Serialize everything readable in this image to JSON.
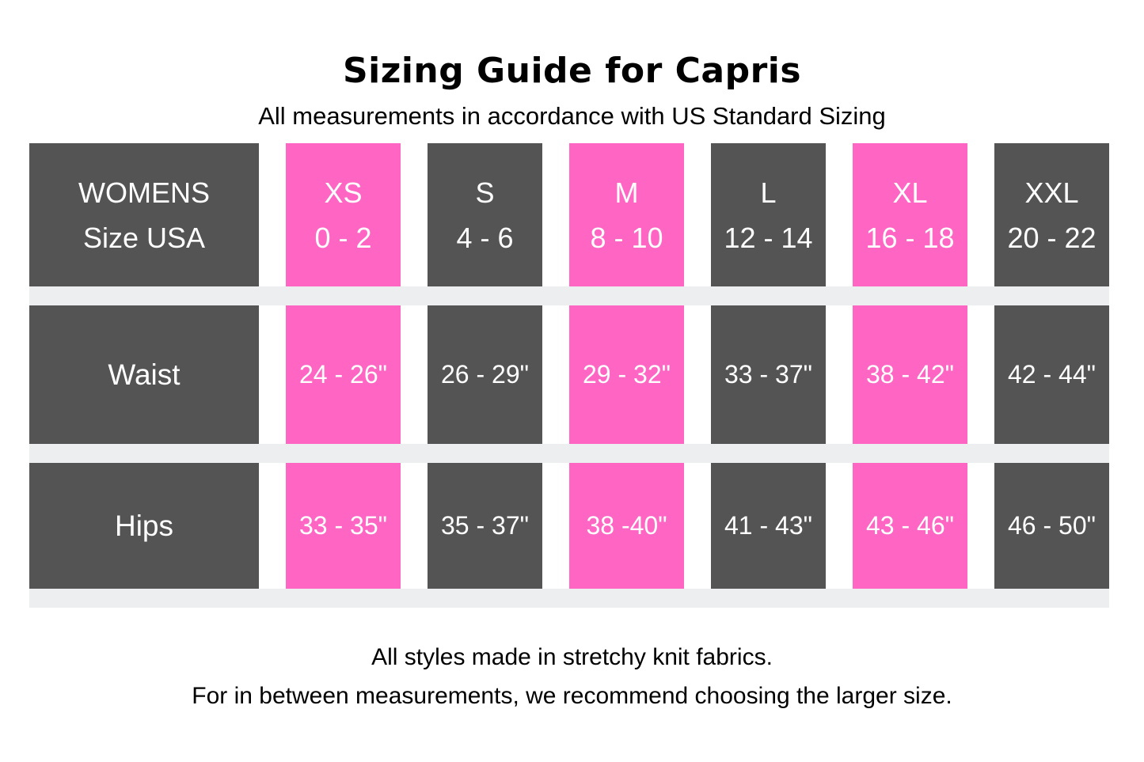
{
  "chart_data": {
    "type": "table",
    "title": "Sizing Guide for Capris",
    "subtitle": "All measurements in accordance with US Standard Sizing",
    "corner_header": {
      "line1": "WOMENS",
      "line2": "Size USA"
    },
    "columns": [
      {
        "size": "XS",
        "us_size": "0 - 2",
        "waist": "24 - 26\"",
        "hips": "33 - 35\"",
        "highlighted": true
      },
      {
        "size": "S",
        "us_size": "4 - 6",
        "waist": "26 - 29\"",
        "hips": "35 - 37\"",
        "highlighted": false
      },
      {
        "size": "M",
        "us_size": "8 - 10",
        "waist": "29 - 32\"",
        "hips": "38 -40\"",
        "highlighted": true
      },
      {
        "size": "L",
        "us_size": "12 - 14",
        "waist": "33 - 37\"",
        "hips": "41 - 43\"",
        "highlighted": false
      },
      {
        "size": "XL",
        "us_size": "16 - 18",
        "waist": "38 - 42\"",
        "hips": "43 - 46\"",
        "highlighted": true
      },
      {
        "size": "XXL",
        "us_size": "20 - 22",
        "waist": "42 - 44\"",
        "hips": "46 - 50\"",
        "highlighted": false
      }
    ],
    "row_labels": {
      "waist": "Waist",
      "hips": "Hips"
    },
    "footer": {
      "line1": "All styles made in stretchy knit fabrics.",
      "line2": "For in between measurements, we recommend choosing the larger size."
    }
  },
  "colors": {
    "highlight_pink": "#FF66C4",
    "cell_gray": "#545454",
    "row_divider": "#EDEEF0",
    "cell_text": "#FFFFFF",
    "page_text": "#000000",
    "background": "#FFFFFF"
  }
}
